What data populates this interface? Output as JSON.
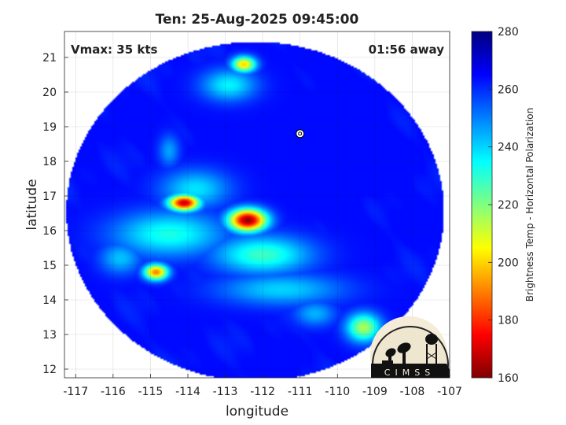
{
  "chart_data": {
    "type": "heatmap",
    "title": "Ten: 25-Aug-2025 09:45:00",
    "xlabel": "longitude",
    "ylabel": "latitude",
    "xlim": [
      -117.3,
      -107
    ],
    "ylim": [
      11.75,
      21.75
    ],
    "x_ticks": [
      -117,
      -116,
      -115,
      -114,
      -113,
      -112,
      -111,
      -110,
      -109,
      -108,
      -107
    ],
    "y_ticks": [
      12,
      13,
      14,
      15,
      16,
      17,
      18,
      19,
      20,
      21
    ],
    "grid": true,
    "annotations": {
      "top_left": "Vmax: 35 kts",
      "top_right": "01:56 away"
    },
    "colorbar": {
      "label": "Brightness Temp - Horizontal Polarization",
      "min": 160,
      "max": 280,
      "ticks": [
        160,
        180,
        200,
        220,
        240,
        260,
        280
      ],
      "colors": [
        "#800000",
        "#ff0000",
        "#ff8000",
        "#ffff00",
        "#80ff80",
        "#00ffff",
        "#0080ff",
        "#0000ff",
        "#000080"
      ]
    },
    "swath": {
      "center_lon": -112.2,
      "center_lat": 16.55,
      "radius_lon": 5.05,
      "radius_lat": 4.9
    },
    "storm_center": {
      "lon": -111.0,
      "lat": 18.8
    },
    "background_temp": 264,
    "features": [
      {
        "lon": -112.4,
        "lat": 16.3,
        "min_temp": 162,
        "rx": 0.55,
        "ry": 0.35
      },
      {
        "lon": -114.1,
        "lat": 16.8,
        "min_temp": 168,
        "rx": 0.45,
        "ry": 0.25
      },
      {
        "lon": -114.85,
        "lat": 14.8,
        "min_temp": 190,
        "rx": 0.35,
        "ry": 0.25
      },
      {
        "lon": -112.5,
        "lat": 20.8,
        "min_temp": 200,
        "rx": 0.35,
        "ry": 0.25
      },
      {
        "lon": -109.3,
        "lat": 13.2,
        "min_temp": 215,
        "rx": 0.5,
        "ry": 0.45
      },
      {
        "lon": -112.0,
        "lat": 15.3,
        "min_temp": 228,
        "rx": 1.4,
        "ry": 0.6
      },
      {
        "lon": -114.5,
        "lat": 15.9,
        "min_temp": 232,
        "rx": 1.6,
        "ry": 0.7
      },
      {
        "lon": -112.9,
        "lat": 20.2,
        "min_temp": 236,
        "rx": 0.8,
        "ry": 0.5
      },
      {
        "lon": -113.8,
        "lat": 17.2,
        "min_temp": 238,
        "rx": 1.0,
        "ry": 0.6
      },
      {
        "lon": -111.5,
        "lat": 14.3,
        "min_temp": 240,
        "rx": 1.8,
        "ry": 0.5
      },
      {
        "lon": -115.8,
        "lat": 15.2,
        "min_temp": 242,
        "rx": 0.6,
        "ry": 0.5
      },
      {
        "lon": -110.6,
        "lat": 13.6,
        "min_temp": 244,
        "rx": 0.6,
        "ry": 0.4
      },
      {
        "lon": -114.5,
        "lat": 18.3,
        "min_temp": 246,
        "rx": 0.3,
        "ry": 0.5
      }
    ],
    "logo": {
      "text": "CIMSS"
    }
  }
}
